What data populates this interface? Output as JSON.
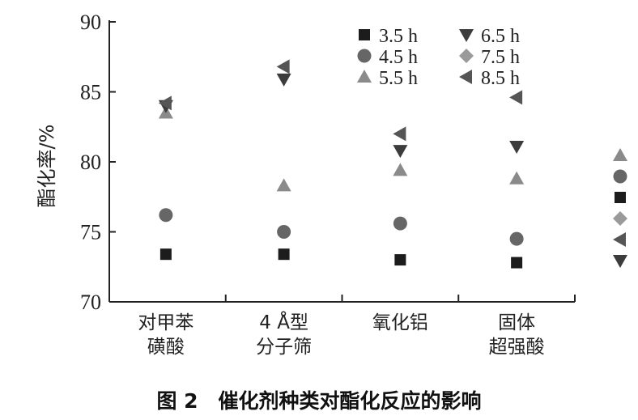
{
  "chart_data": {
    "type": "scatter",
    "title": "图 2　催化剂种类对酯化反应的影响",
    "xlabel": "",
    "ylabel": "酯化率/%",
    "ylim": [
      70,
      90
    ],
    "yticks": [
      70,
      75,
      80,
      85,
      90
    ],
    "categories": [
      [
        "对甲苯",
        "磺酸"
      ],
      [
        "4 Å型",
        "分子筛"
      ],
      [
        "氧化铝"
      ],
      [
        "固体",
        "超强酸"
      ]
    ],
    "grid": false,
    "legend_placement": "top-right",
    "series": [
      {
        "name": "3.5 h",
        "marker": "square",
        "color": "#1c1c1c",
        "values": [
          73.4,
          73.4,
          73.0,
          72.8
        ]
      },
      {
        "name": "4.5 h",
        "marker": "circle",
        "color": "#666666",
        "values": [
          76.2,
          75.0,
          75.6,
          74.5
        ]
      },
      {
        "name": "5.5 h",
        "marker": "triangle-up",
        "color": "#8a8a8a",
        "values": [
          83.5,
          78.3,
          79.4,
          78.8
        ]
      },
      {
        "name": "6.5 h",
        "marker": "triangle-down",
        "color": "#3c3c3c",
        "values": [
          84.0,
          85.9,
          80.8,
          81.1
        ]
      },
      {
        "name": "7.5 h",
        "marker": "diamond",
        "color": "#9a9a9a",
        "values": [
          null,
          null,
          null,
          null
        ]
      },
      {
        "name": "8.5 h",
        "marker": "triangle-left",
        "color": "#555555",
        "values": [
          84.2,
          86.8,
          82.0,
          84.6
        ]
      }
    ]
  }
}
